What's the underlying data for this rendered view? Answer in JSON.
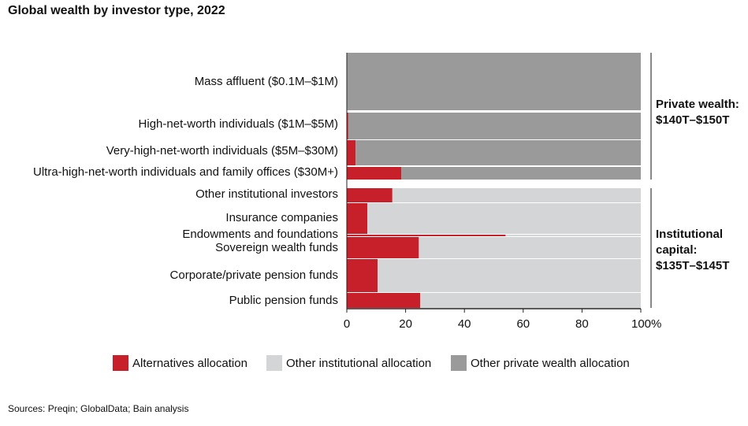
{
  "chart_data": {
    "type": "stacked_bar_horizontal",
    "title": "Global wealth by investor type, 2022",
    "categories": [
      "Mass affluent ($0.1M–$1M)",
      "High-net-worth individuals ($1M–$5M)",
      "Very-high-net-worth individuals ($5M–$30M)",
      "Ultra-high-net-worth individuals and family offices ($30M+)",
      "Other institutional investors",
      "Insurance companies",
      "Endowments and foundations",
      "Sovereign wealth funds",
      "Corporate/private pension funds",
      "Public pension funds"
    ],
    "series": [
      {
        "name": "Alternatives allocation",
        "color": "#c8202a",
        "values": [
          0,
          0.5,
          3,
          18.5,
          15.5,
          7,
          54,
          24.5,
          10.5,
          25
        ]
      },
      {
        "name": "Other institutional allocation",
        "color": "#d4d5d7",
        "values": [
          null,
          null,
          null,
          null,
          84.5,
          93,
          46,
          75.5,
          89.5,
          75
        ]
      },
      {
        "name": "Other private wealth allocation",
        "color": "#9a9a9a",
        "values": [
          100,
          99.5,
          97,
          81.5,
          null,
          null,
          null,
          null,
          null,
          null
        ]
      }
    ],
    "xlim": [
      0,
      100
    ],
    "xticks": [
      0,
      20,
      40,
      60,
      80,
      {
        "value": 100,
        "label": "100%"
      }
    ],
    "annotations": [
      {
        "lines": [
          "Private wealth:",
          "$140T–$150T"
        ]
      },
      {
        "lines": [
          "Institutional",
          "capital:",
          "$135T–$145T"
        ]
      }
    ],
    "source": "Sources: Preqin; GlobalData; Bain analysis"
  }
}
